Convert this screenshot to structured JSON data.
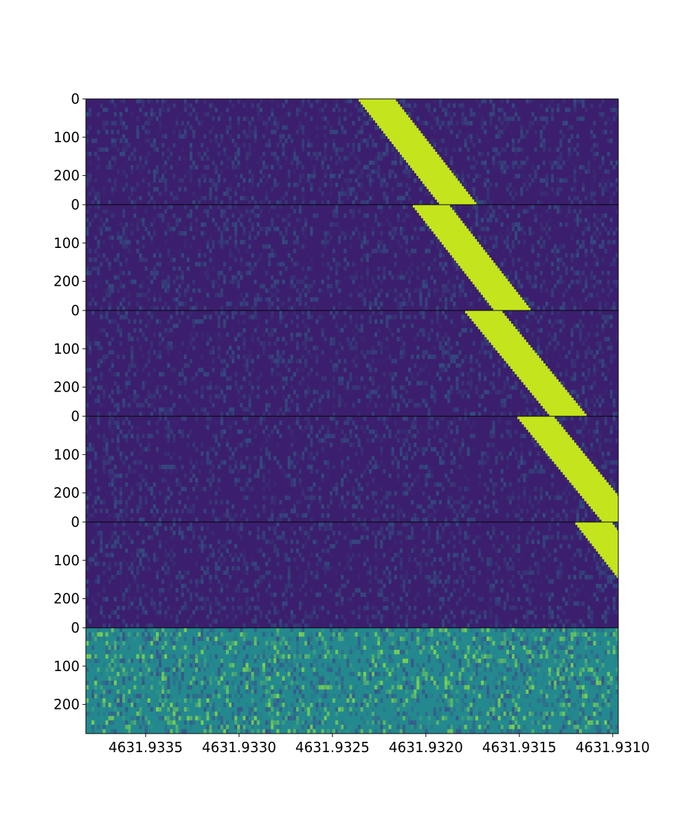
{
  "chart_data": {
    "type": "heatmap",
    "title": "",
    "xlabel": "",
    "ylabel": "",
    "x_axis_reversed": true,
    "xlim": [
      4631.93382,
      4631.93097
    ],
    "x_tick_labels": [
      "4631.9335",
      "4631.9330",
      "4631.9325",
      "4631.9320",
      "4631.9315",
      "4631.9310"
    ],
    "x_ticks": [
      4631.9335,
      4631.933,
      4631.9325,
      4631.932,
      4631.9315,
      4631.931
    ],
    "y_tick_labels": [
      "0",
      "100",
      "200"
    ],
    "y_ticks": [
      0,
      100,
      200
    ],
    "panel_ylim": [
      0,
      276
    ],
    "colormap": "viridis",
    "colors": {
      "background_low": "#3b1f6e",
      "signal_high": "#c4e41d",
      "noise_panel": "#23898e",
      "separator": "#000000"
    },
    "panels": [
      {
        "name": "panel-1",
        "kind": "drift-signal",
        "track_start": 4631.93236,
        "track_end": 4631.93193
      },
      {
        "name": "panel-2",
        "kind": "drift-signal",
        "track_start": 4631.93207,
        "track_end": 4631.93164
      },
      {
        "name": "panel-3",
        "kind": "drift-signal",
        "track_start": 4631.93179,
        "track_end": 4631.93134
      },
      {
        "name": "panel-4",
        "kind": "drift-signal",
        "track_start": 4631.93151,
        "track_end": 4631.93106
      },
      {
        "name": "panel-5",
        "kind": "drift-signal",
        "track_start": 4631.9312,
        "track_end": 4631.93077
      },
      {
        "name": "panel-6",
        "kind": "noise"
      }
    ],
    "signal_width": 0.0002
  }
}
